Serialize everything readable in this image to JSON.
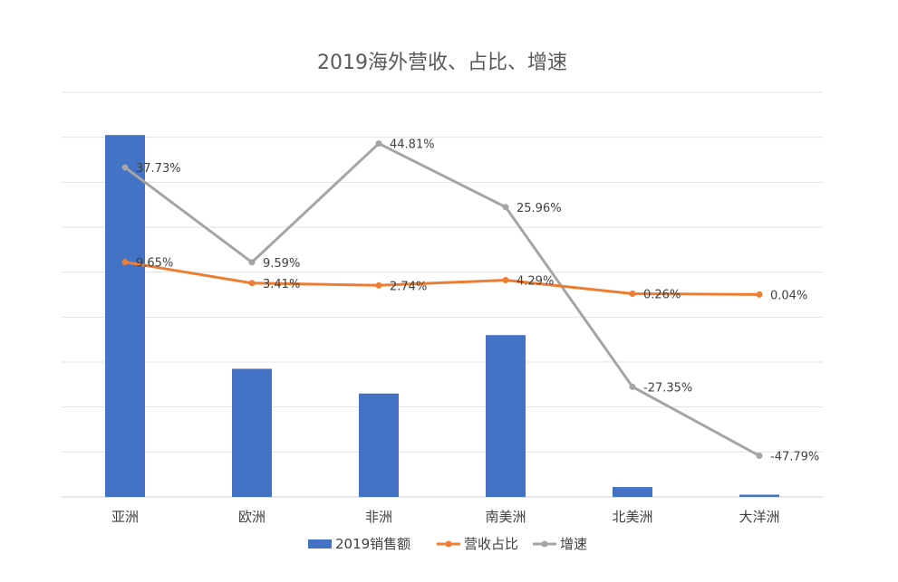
{
  "chart_data": {
    "type": "bar",
    "title": "2019海外营收、占比、增速",
    "categories": [
      "亚洲",
      "欧洲",
      "非洲",
      "南美洲",
      "北美洲",
      "大洋洲"
    ],
    "series": [
      {
        "name": "2019销售额",
        "type": "bar",
        "color": "#4472C4",
        "values": [
          8.05,
          2.85,
          2.3,
          3.6,
          0.22,
          0.05
        ]
      },
      {
        "name": "营收占比",
        "type": "line",
        "color": "#ED7D31",
        "values": [
          9.65,
          3.41,
          2.74,
          4.29,
          0.26,
          0.04
        ],
        "labels": [
          "9.65%",
          "3.41%",
          "2.74%",
          "4.29%",
          "0.26%",
          "0.04%"
        ]
      },
      {
        "name": "增速",
        "type": "line",
        "color": "#A5A5A5",
        "values": [
          37.73,
          9.59,
          44.81,
          25.96,
          -27.35,
          -47.79
        ],
        "labels": [
          "37.73%",
          "9.59%",
          "44.81%",
          "25.96%",
          "-27.35%",
          "-47.79%"
        ]
      }
    ],
    "grid": true,
    "legend": "bottom",
    "bar_ylim": [
      0,
      9
    ],
    "line_ylim": [
      -60,
      60
    ]
  }
}
